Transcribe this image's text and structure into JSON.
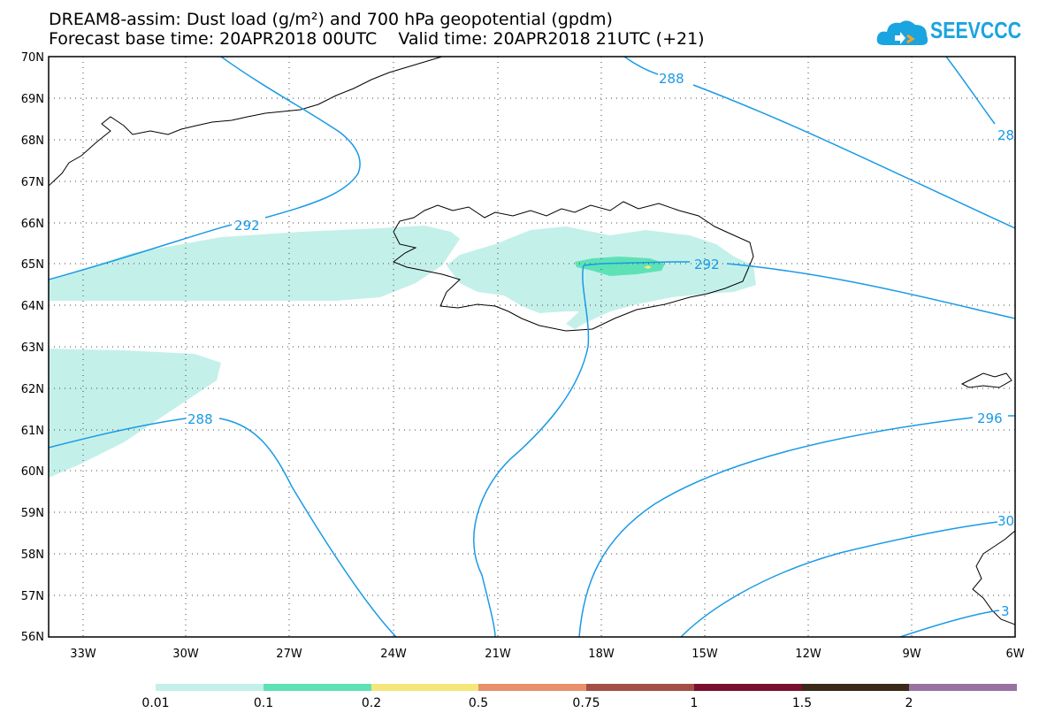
{
  "header": {
    "title_line1": "DREAM8-assim: Dust load (g/m²) and 700 hPa geopotential (gpdm)",
    "title_line2": "Forecast base time: 20APR2018 00UTC    Valid time: 20APR2018 21UTC (+21)",
    "logo_text": "SEEVCCC"
  },
  "map": {
    "lat_labels": [
      "70N",
      "69N",
      "68N",
      "67N",
      "66N",
      "65N",
      "64N",
      "63N",
      "62N",
      "61N",
      "60N",
      "59N",
      "58N",
      "57N",
      "56N"
    ],
    "lon_labels": [
      "33W",
      "30W",
      "27W",
      "24W",
      "21W",
      "18W",
      "15W",
      "12W",
      "9W",
      "6W"
    ],
    "contour_labels": [
      "292",
      "292",
      "288",
      "288",
      "28",
      "296",
      "30",
      "3"
    ],
    "contour_color": "#1a9ae6",
    "coast_color": "#000000"
  },
  "colorbar": {
    "labels": [
      "0.01",
      "0.1",
      "0.2",
      "0.5",
      "0.75",
      "1",
      "1.5",
      "2"
    ],
    "colors": [
      "#c4f0ea",
      "#5de2b6",
      "#f5e67a",
      "#e8906a",
      "#a24f45",
      "#7a0f2f",
      "#3b2a18",
      "#9a72a2"
    ]
  }
}
